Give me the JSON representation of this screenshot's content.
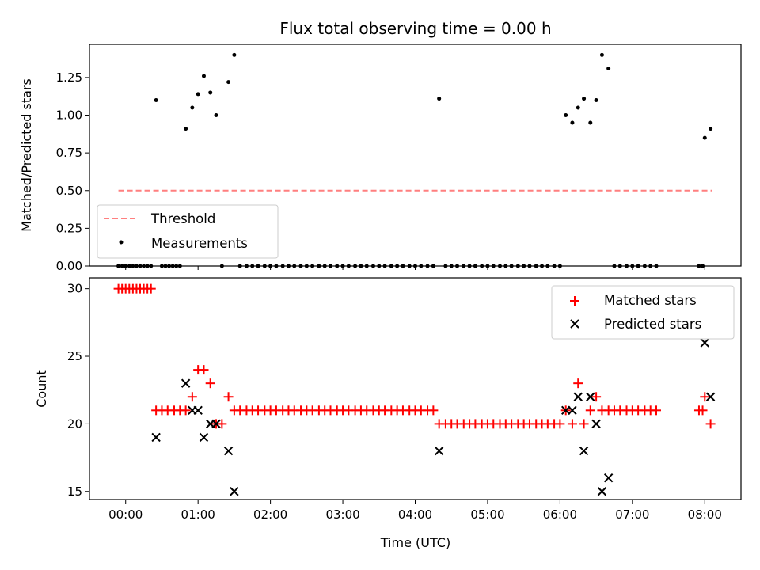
{
  "chart_data": [
    {
      "type": "scatter",
      "title": "Flux total observing time = 0.00 h",
      "xlabel": "",
      "ylabel": "Matched/Predicted stars",
      "xlim": [
        -0.5,
        8.5
      ],
      "ylim": [
        0,
        1.47
      ],
      "yticks": [
        0.0,
        0.25,
        0.5,
        0.75,
        1.0,
        1.25
      ],
      "ytick_labels": [
        "0.00",
        "0.25",
        "0.50",
        "0.75",
        "1.00",
        "1.25"
      ],
      "legend": {
        "position": "lower-left",
        "entries": [
          "Threshold",
          "Measurements"
        ]
      },
      "threshold": {
        "name": "Threshold",
        "y": 0.5,
        "x": [
          -0.1,
          8.1
        ],
        "color": "#ff7f7f"
      },
      "series": [
        {
          "name": "Measurements",
          "color": "#000000",
          "points": [
            [
              -0.1,
              0
            ],
            [
              -0.05,
              0
            ],
            [
              0.0,
              0
            ],
            [
              0.05,
              0
            ],
            [
              0.1,
              0
            ],
            [
              0.15,
              0
            ],
            [
              0.2,
              0
            ],
            [
              0.25,
              0
            ],
            [
              0.3,
              0
            ],
            [
              0.35,
              0
            ],
            [
              0.42,
              1.1
            ],
            [
              0.5,
              0
            ],
            [
              0.55,
              0
            ],
            [
              0.6,
              0
            ],
            [
              0.65,
              0
            ],
            [
              0.7,
              0
            ],
            [
              0.75,
              0
            ],
            [
              0.83,
              0.91
            ],
            [
              0.92,
              1.05
            ],
            [
              1.0,
              1.14
            ],
            [
              1.08,
              1.26
            ],
            [
              1.17,
              1.15
            ],
            [
              1.25,
              1.0
            ],
            [
              1.33,
              0
            ],
            [
              1.42,
              1.22
            ],
            [
              1.5,
              1.4
            ],
            [
              1.58,
              0
            ],
            [
              1.67,
              0
            ],
            [
              1.75,
              0
            ],
            [
              1.83,
              0
            ],
            [
              1.92,
              0
            ],
            [
              2.0,
              0
            ],
            [
              2.08,
              0
            ],
            [
              2.17,
              0
            ],
            [
              2.25,
              0
            ],
            [
              2.33,
              0
            ],
            [
              2.42,
              0
            ],
            [
              2.5,
              0
            ],
            [
              2.58,
              0
            ],
            [
              2.67,
              0
            ],
            [
              2.75,
              0
            ],
            [
              2.83,
              0
            ],
            [
              2.92,
              0
            ],
            [
              3.0,
              0
            ],
            [
              3.08,
              0
            ],
            [
              3.17,
              0
            ],
            [
              3.25,
              0
            ],
            [
              3.33,
              0
            ],
            [
              3.42,
              0
            ],
            [
              3.5,
              0
            ],
            [
              3.58,
              0
            ],
            [
              3.67,
              0
            ],
            [
              3.75,
              0
            ],
            [
              3.83,
              0
            ],
            [
              3.92,
              0
            ],
            [
              4.0,
              0
            ],
            [
              4.08,
              0
            ],
            [
              4.17,
              0
            ],
            [
              4.25,
              0
            ],
            [
              4.33,
              1.11
            ],
            [
              4.42,
              0
            ],
            [
              4.5,
              0
            ],
            [
              4.58,
              0
            ],
            [
              4.67,
              0
            ],
            [
              4.75,
              0
            ],
            [
              4.83,
              0
            ],
            [
              4.92,
              0
            ],
            [
              5.0,
              0
            ],
            [
              5.08,
              0
            ],
            [
              5.17,
              0
            ],
            [
              5.25,
              0
            ],
            [
              5.33,
              0
            ],
            [
              5.42,
              0
            ],
            [
              5.5,
              0
            ],
            [
              5.58,
              0
            ],
            [
              5.67,
              0
            ],
            [
              5.75,
              0
            ],
            [
              5.83,
              0
            ],
            [
              5.92,
              0
            ],
            [
              6.0,
              0
            ],
            [
              6.08,
              1.0
            ],
            [
              6.17,
              0.95
            ],
            [
              6.25,
              1.05
            ],
            [
              6.33,
              1.11
            ],
            [
              6.42,
              0.95
            ],
            [
              6.5,
              1.1
            ],
            [
              6.58,
              1.4
            ],
            [
              6.67,
              1.31
            ],
            [
              6.75,
              0
            ],
            [
              6.83,
              0
            ],
            [
              6.92,
              0
            ],
            [
              7.0,
              0
            ],
            [
              7.08,
              0
            ],
            [
              7.17,
              0
            ],
            [
              7.25,
              0
            ],
            [
              7.33,
              0
            ],
            [
              7.92,
              0
            ],
            [
              7.97,
              0
            ],
            [
              8.0,
              0.85
            ],
            [
              8.08,
              0.91
            ]
          ]
        }
      ]
    },
    {
      "type": "scatter",
      "title": "",
      "xlabel": "Time (UTC)",
      "ylabel": "Count",
      "xlim": [
        -0.5,
        8.5
      ],
      "ylim": [
        14.4,
        30.8
      ],
      "xticks": [
        0,
        1,
        2,
        3,
        4,
        5,
        6,
        7,
        8
      ],
      "xtick_labels": [
        "00:00",
        "01:00",
        "02:00",
        "03:00",
        "04:00",
        "05:00",
        "06:00",
        "07:00",
        "08:00"
      ],
      "yticks": [
        15,
        20,
        25,
        30
      ],
      "ytick_labels": [
        "15",
        "20",
        "25",
        "30"
      ],
      "legend": {
        "position": "top-right",
        "entries": [
          "Matched stars",
          "Predicted stars"
        ]
      },
      "series": [
        {
          "name": "Matched stars",
          "marker": "plus",
          "color": "#ff0000",
          "points": [
            [
              -0.1,
              30
            ],
            [
              -0.05,
              30
            ],
            [
              0.0,
              30
            ],
            [
              0.05,
              30
            ],
            [
              0.1,
              30
            ],
            [
              0.15,
              30
            ],
            [
              0.2,
              30
            ],
            [
              0.25,
              30
            ],
            [
              0.3,
              30
            ],
            [
              0.35,
              30
            ],
            [
              0.42,
              21
            ],
            [
              0.5,
              21
            ],
            [
              0.58,
              21
            ],
            [
              0.67,
              21
            ],
            [
              0.75,
              21
            ],
            [
              0.83,
              21
            ],
            [
              0.92,
              22
            ],
            [
              1.0,
              24
            ],
            [
              1.08,
              24
            ],
            [
              1.17,
              23
            ],
            [
              1.25,
              20
            ],
            [
              1.33,
              20
            ],
            [
              1.42,
              22
            ],
            [
              1.5,
              21
            ],
            [
              1.58,
              21
            ],
            [
              1.67,
              21
            ],
            [
              1.75,
              21
            ],
            [
              1.83,
              21
            ],
            [
              1.92,
              21
            ],
            [
              2.0,
              21
            ],
            [
              2.08,
              21
            ],
            [
              2.17,
              21
            ],
            [
              2.25,
              21
            ],
            [
              2.33,
              21
            ],
            [
              2.42,
              21
            ],
            [
              2.5,
              21
            ],
            [
              2.58,
              21
            ],
            [
              2.67,
              21
            ],
            [
              2.75,
              21
            ],
            [
              2.83,
              21
            ],
            [
              2.92,
              21
            ],
            [
              3.0,
              21
            ],
            [
              3.08,
              21
            ],
            [
              3.17,
              21
            ],
            [
              3.25,
              21
            ],
            [
              3.33,
              21
            ],
            [
              3.42,
              21
            ],
            [
              3.5,
              21
            ],
            [
              3.58,
              21
            ],
            [
              3.67,
              21
            ],
            [
              3.75,
              21
            ],
            [
              3.83,
              21
            ],
            [
              3.92,
              21
            ],
            [
              4.0,
              21
            ],
            [
              4.08,
              21
            ],
            [
              4.17,
              21
            ],
            [
              4.25,
              21
            ],
            [
              4.33,
              20
            ],
            [
              4.42,
              20
            ],
            [
              4.5,
              20
            ],
            [
              4.58,
              20
            ],
            [
              4.67,
              20
            ],
            [
              4.75,
              20
            ],
            [
              4.83,
              20
            ],
            [
              4.92,
              20
            ],
            [
              5.0,
              20
            ],
            [
              5.08,
              20
            ],
            [
              5.17,
              20
            ],
            [
              5.25,
              20
            ],
            [
              5.33,
              20
            ],
            [
              5.42,
              20
            ],
            [
              5.5,
              20
            ],
            [
              5.58,
              20
            ],
            [
              5.67,
              20
            ],
            [
              5.75,
              20
            ],
            [
              5.83,
              20
            ],
            [
              5.92,
              20
            ],
            [
              6.0,
              20
            ],
            [
              6.08,
              21
            ],
            [
              6.17,
              20
            ],
            [
              6.25,
              23
            ],
            [
              6.33,
              20
            ],
            [
              6.42,
              21
            ],
            [
              6.5,
              22
            ],
            [
              6.58,
              21
            ],
            [
              6.67,
              21
            ],
            [
              6.75,
              21
            ],
            [
              6.83,
              21
            ],
            [
              6.92,
              21
            ],
            [
              7.0,
              21
            ],
            [
              7.08,
              21
            ],
            [
              7.17,
              21
            ],
            [
              7.25,
              21
            ],
            [
              7.33,
              21
            ],
            [
              7.92,
              21
            ],
            [
              7.97,
              21
            ],
            [
              8.0,
              22
            ],
            [
              8.08,
              20
            ]
          ]
        },
        {
          "name": "Predicted stars",
          "marker": "x",
          "color": "#000000",
          "points": [
            [
              0.42,
              19
            ],
            [
              0.83,
              23
            ],
            [
              0.92,
              21
            ],
            [
              1.0,
              21
            ],
            [
              1.08,
              19
            ],
            [
              1.17,
              20
            ],
            [
              1.25,
              20
            ],
            [
              1.42,
              18
            ],
            [
              1.5,
              15
            ],
            [
              4.33,
              18
            ],
            [
              6.08,
              21
            ],
            [
              6.17,
              21
            ],
            [
              6.25,
              22
            ],
            [
              6.33,
              18
            ],
            [
              6.42,
              22
            ],
            [
              6.5,
              20
            ],
            [
              6.58,
              15
            ],
            [
              6.67,
              16
            ],
            [
              8.0,
              26
            ],
            [
              8.08,
              22
            ]
          ]
        }
      ]
    }
  ]
}
